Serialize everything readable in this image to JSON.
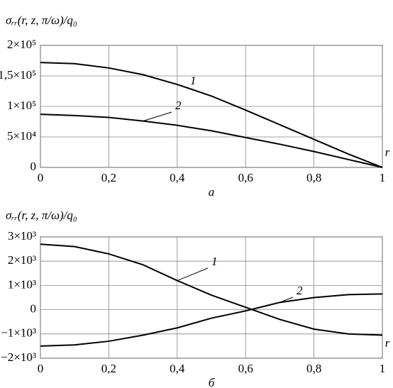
{
  "chart_data": [
    {
      "type": "line",
      "ylabel": "σᵣᵣ(r, z, π/ω)/q₀",
      "xlabel": "r",
      "caption": "а",
      "x": [
        0,
        0.1,
        0.2,
        0.3,
        0.4,
        0.5,
        0.6,
        0.7,
        0.8,
        0.9,
        1
      ],
      "series": [
        {
          "name": "1",
          "color": "#000000",
          "values": [
            172000,
            170000,
            163000,
            152000,
            136000,
            117000,
            94000,
            70000,
            46000,
            22000,
            0
          ]
        },
        {
          "name": "2",
          "color": "#000000",
          "values": [
            87000,
            85000,
            82000,
            76000,
            69000,
            60000,
            49000,
            38000,
            26000,
            13000,
            0
          ]
        }
      ],
      "xlim": [
        0,
        1
      ],
      "xticks": [
        0,
        {
          "value": 0.2,
          "label": "0,2"
        },
        {
          "value": 0.4,
          "label": "0,4"
        },
        {
          "value": 0.6,
          "label": "0,6"
        },
        {
          "value": 0.8,
          "label": "0,8"
        },
        1
      ],
      "ylim": [
        0,
        200000
      ],
      "yticks": [
        0,
        {
          "value": 50000,
          "label": "5×10⁴"
        },
        {
          "value": 100000,
          "label": "1×10⁵"
        },
        {
          "value": 150000,
          "label": "1,5×10⁵"
        },
        {
          "value": 200000,
          "label": "2×10⁵"
        }
      ],
      "grid": true
    },
    {
      "type": "line",
      "ylabel": "σᵣᵣ(r, z, π/ω)/q₀",
      "xlabel": "r",
      "caption": "б",
      "x": [
        0,
        0.1,
        0.2,
        0.3,
        0.4,
        0.5,
        0.6,
        0.7,
        0.8,
        0.9,
        1
      ],
      "series": [
        {
          "name": "1",
          "color": "#000000",
          "values": [
            2700,
            2600,
            2300,
            1850,
            1200,
            600,
            100,
            -400,
            -800,
            -1000,
            -1050
          ]
        },
        {
          "name": "2",
          "color": "#000000",
          "values": [
            -1500,
            -1450,
            -1300,
            -1050,
            -750,
            -350,
            -50,
            300,
            500,
            620,
            650
          ]
        }
      ],
      "xlim": [
        0,
        1
      ],
      "xticks": [
        0,
        {
          "value": 0.2,
          "label": "0,2"
        },
        {
          "value": 0.4,
          "label": "0,4"
        },
        {
          "value": 0.6,
          "label": "0,6"
        },
        {
          "value": 0.8,
          "label": "0,8"
        },
        1
      ],
      "ylim": [
        -2000,
        3000
      ],
      "yticks": [
        {
          "value": -2000,
          "label": "−2×10³"
        },
        {
          "value": -1000,
          "label": "−1×10³"
        },
        0,
        {
          "value": 1000,
          "label": "1×10³"
        },
        {
          "value": 2000,
          "label": "2×10³"
        },
        {
          "value": 3000,
          "label": "3×10³"
        }
      ],
      "grid": true
    }
  ]
}
